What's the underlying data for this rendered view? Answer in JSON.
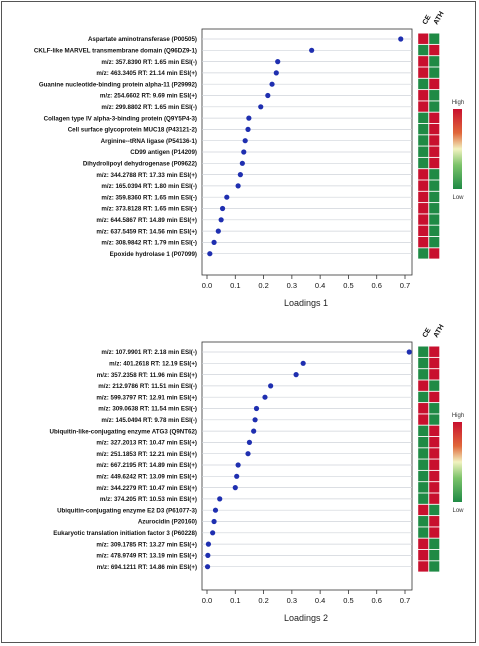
{
  "heatmap_columns": [
    "CE",
    "ATH"
  ],
  "legend": {
    "high": "High",
    "low": "Low"
  },
  "colors": {
    "point": "#1f2fb0",
    "guide": "#cfd3da",
    "red": "#c8102e",
    "green": "#1f8a45"
  },
  "chart_data": [
    {
      "type": "scatter",
      "xlabel": "Loadings 1",
      "xlim": [
        0,
        0.7
      ],
      "xticks": [
        "0.0",
        "0.1",
        "0.2",
        "0.3",
        "0.4",
        "0.5",
        "0.6",
        "0.7"
      ],
      "grid": false,
      "legend_position": "right",
      "categories": [
        "Aspartate aminotransferase (P00505)",
        "CKLF-like MARVEL transmembrane domain (Q96DZ9-1)",
        "m/z: 357.8390 RT: 1.65 min ESI(-)",
        "m/z: 463.3405 RT: 21.14 min ESI(+)",
        "Guanine nucleotide-binding protein alpha-11 (P29992)",
        "m/z: 254.6602 RT: 9.69 min ESI(+)",
        "m/z: 299.8802 RT: 1.65 min ESI(-)",
        "Collagen type IV alpha-3-binding protein (Q9Y5P4-3)",
        "Cell surface glycoprotein MUC18 (P43121-2)",
        "Arginine--tRNA ligase (P54136-1)",
        "CD99 antigen (P14209)",
        "Dihydrolipoyl dehydrogenase (P09622)",
        "m/z: 344.2788 RT: 17.33 min ESI(+)",
        "m/z: 165.0394 RT: 1.80 min ESI(-)",
        "m/z: 359.8360 RT: 1.65 min ESI(-)",
        "m/z: 373.8128 RT: 1.65 min ESI(-)",
        "m/z: 644.5867 RT: 14.89 min ESI(+)",
        "m/z: 637.5459 RT: 14.56 min ESI(+)",
        "m/z: 308.9842 RT: 1.79 min ESI(-)",
        "Epoxide hydrolase 1 (P07099)"
      ],
      "values": [
        0.685,
        0.37,
        0.25,
        0.245,
        0.23,
        0.215,
        0.19,
        0.148,
        0.145,
        0.135,
        0.13,
        0.125,
        0.118,
        0.11,
        0.07,
        0.055,
        0.05,
        0.04,
        0.025,
        0.01
      ],
      "heatmap": [
        [
          "red",
          "green"
        ],
        [
          "green",
          "red"
        ],
        [
          "red",
          "green"
        ],
        [
          "red",
          "green"
        ],
        [
          "green",
          "red"
        ],
        [
          "red",
          "green"
        ],
        [
          "red",
          "green"
        ],
        [
          "green",
          "red"
        ],
        [
          "green",
          "red"
        ],
        [
          "green",
          "red"
        ],
        [
          "green",
          "red"
        ],
        [
          "green",
          "red"
        ],
        [
          "red",
          "green"
        ],
        [
          "red",
          "green"
        ],
        [
          "red",
          "green"
        ],
        [
          "red",
          "green"
        ],
        [
          "red",
          "green"
        ],
        [
          "red",
          "green"
        ],
        [
          "red",
          "green"
        ],
        [
          "green",
          "red"
        ]
      ]
    },
    {
      "type": "scatter",
      "xlabel": "Loadings 2",
      "xlim": [
        0,
        0.7
      ],
      "xticks": [
        "0.0",
        "0.1",
        "0.2",
        "0.3",
        "0.4",
        "0.5",
        "0.6",
        "0.7"
      ],
      "grid": false,
      "legend_position": "right",
      "categories": [
        "m/z: 107.9901 RT: 2.18 min ESI(-)",
        "m/z: 401.2618 RT: 12.19 ESI(+)",
        "m/z: 357.2358 RT: 11.96 min ESI(+)",
        "m/z: 212.9786 RT: 11.51 min ESI(-)",
        "m/z: 599.3797 RT: 12.91 min ESI(+)",
        "m/z: 309.0638 RT: 11.54 min ESI(-)",
        "m/z: 145.0494 RT: 9.78 min ESI(-)",
        "Ubiquitin-like-conjugating enzyme ATG3 (Q9NT62)",
        "m/z: 327.2013 RT: 10.47 min ESI(+)",
        "m/z: 251.1853 RT: 12.21 min ESI(+)",
        "m/z: 667.2195 RT: 14.89 min ESI(+)",
        "m/z: 449.6242 RT: 13.09 min ESI(+)",
        "m/z: 344.2279 RT: 10.47 min ESI(+)",
        "m/z: 374.205 RT: 10.53 min ESI(+)",
        "Ubiquitin-conjugating enzyme E2 D3 (P61077-3)",
        "Azurocidin (P20160)",
        "Eukaryotic translation initiation factor 3 (P60228)",
        "m/z: 309.1785 RT: 13.27 min ESI(+)",
        "m/z: 478.9749 RT: 13.19 min ESI(+)",
        "m/z: 694.1211 RT: 14.86 min ESI(+)"
      ],
      "values": [
        0.715,
        0.34,
        0.315,
        0.225,
        0.205,
        0.175,
        0.17,
        0.165,
        0.15,
        0.145,
        0.11,
        0.105,
        0.1,
        0.045,
        0.03,
        0.025,
        0.02,
        0.005,
        0.003,
        0.002
      ],
      "heatmap": [
        [
          "green",
          "red"
        ],
        [
          "green",
          "red"
        ],
        [
          "green",
          "red"
        ],
        [
          "red",
          "green"
        ],
        [
          "green",
          "red"
        ],
        [
          "red",
          "green"
        ],
        [
          "red",
          "green"
        ],
        [
          "green",
          "red"
        ],
        [
          "green",
          "red"
        ],
        [
          "green",
          "red"
        ],
        [
          "green",
          "red"
        ],
        [
          "green",
          "red"
        ],
        [
          "green",
          "red"
        ],
        [
          "green",
          "red"
        ],
        [
          "red",
          "green"
        ],
        [
          "green",
          "red"
        ],
        [
          "green",
          "red"
        ],
        [
          "red",
          "green"
        ],
        [
          "red",
          "green"
        ],
        [
          "red",
          "green"
        ]
      ]
    }
  ]
}
